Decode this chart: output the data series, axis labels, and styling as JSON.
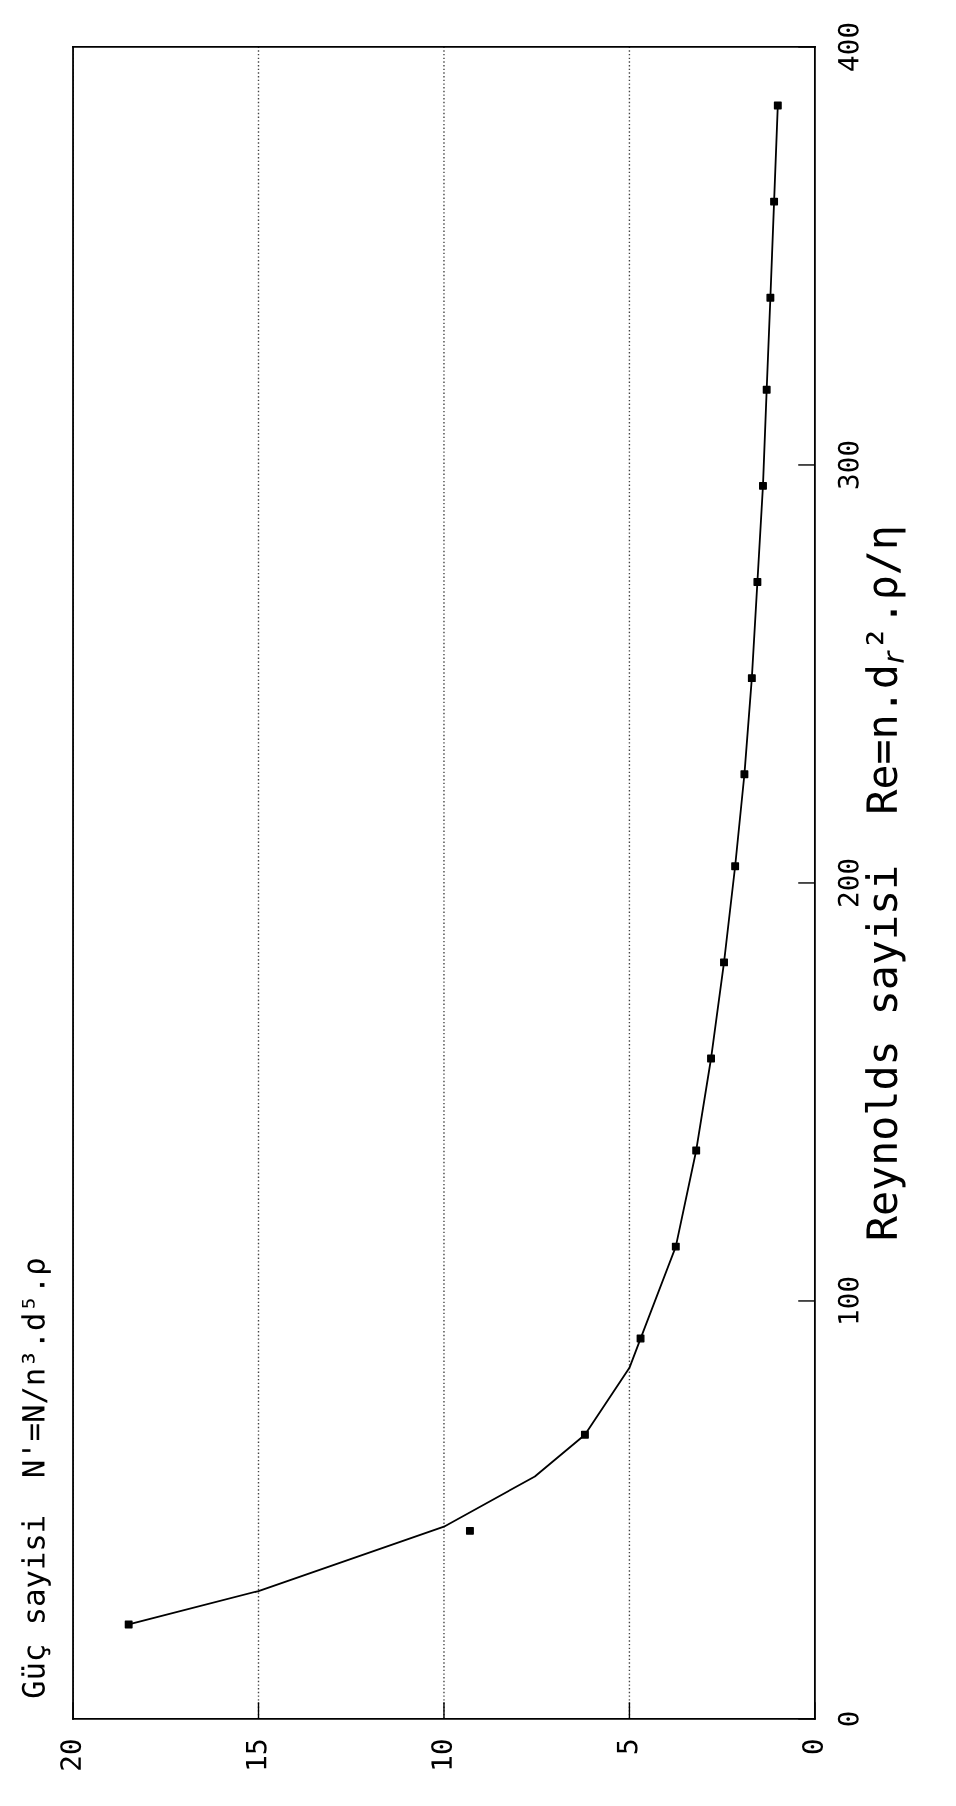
{
  "chart_data": {
    "type": "scatter",
    "annotations": [
      "Güç sayisi  N'=N/n³.d⁵.ρ"
    ],
    "ylabel": "Reynolds sayisi  Re=n.d$_{r}$².ρ/η",
    "xlim": [
      20,
      0
    ],
    "xticks": [
      20,
      15,
      10,
      5,
      0
    ],
    "ylim": [
      0,
      400
    ],
    "yticks": [
      0,
      100,
      200,
      300,
      400
    ],
    "grid": "x",
    "series": [
      {
        "marker": "square",
        "color": "#000000",
        "x": [
          18.5,
          9.3,
          6.2,
          4.7,
          3.75,
          3.2,
          2.8,
          2.45,
          2.15,
          1.9,
          1.7,
          1.55,
          1.4,
          1.3,
          1.2,
          1.1,
          1.0
        ],
        "values": [
          22.6,
          45,
          68,
          91,
          113,
          136,
          158,
          181,
          204,
          226,
          249,
          272,
          295,
          318,
          340,
          363,
          386
        ]
      },
      {
        "type": "line",
        "marker": "none",
        "color": "#000000",
        "x": [
          18.5,
          15,
          10,
          7.55,
          6.2,
          5,
          4.7,
          3.75,
          3.2,
          2.8,
          2.45,
          2.15,
          1.9,
          1.7,
          1.55,
          1.4,
          1.3,
          1.2,
          1.1,
          1.0
        ],
        "values": [
          22.6,
          30.6,
          46,
          58,
          68,
          84,
          91,
          113,
          136,
          158,
          181,
          204,
          226,
          249,
          272,
          295,
          318,
          340,
          363,
          386
        ]
      }
    ]
  }
}
